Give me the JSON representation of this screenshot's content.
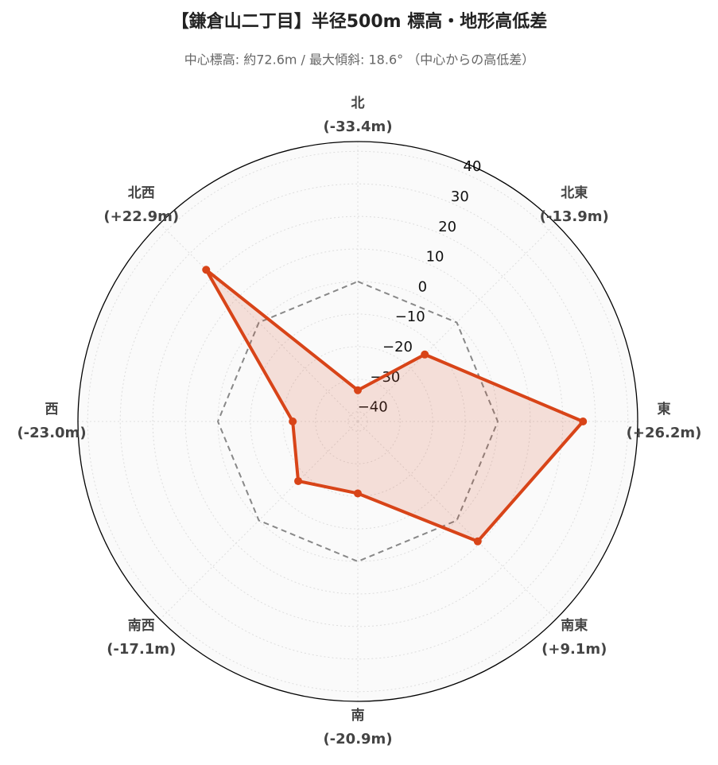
{
  "chart_data": {
    "type": "radar",
    "title": "【鎌倉山二丁目】半径500m 標高・地形高低差",
    "subtitle": "中心標高: 約72.6m / 最大傾斜: 18.6° （中心からの高低差）",
    "categories": [
      "北",
      "北東",
      "東",
      "南東",
      "南",
      "南西",
      "西",
      "北西"
    ],
    "values": [
      -33.4,
      -13.9,
      26.2,
      9.1,
      -20.9,
      -17.1,
      -23.0,
      22.9
    ],
    "value_labels": [
      "(-33.4m)",
      "(-13.9m)",
      "(+26.2m)",
      "(+9.1m)",
      "(-20.9m)",
      "(-17.1m)",
      "(-23.0m)",
      "(+22.9m)"
    ],
    "color": "#d84418",
    "baseline": 0,
    "ylim": [
      -43,
      43
    ],
    "yticks": [
      {
        "value": -40,
        "label": "−40"
      },
      {
        "value": -30,
        "label": "−30"
      },
      {
        "value": -20,
        "label": "−20"
      },
      {
        "value": -10,
        "label": "−10"
      },
      0,
      10,
      20,
      30,
      40
    ],
    "grid": true
  }
}
